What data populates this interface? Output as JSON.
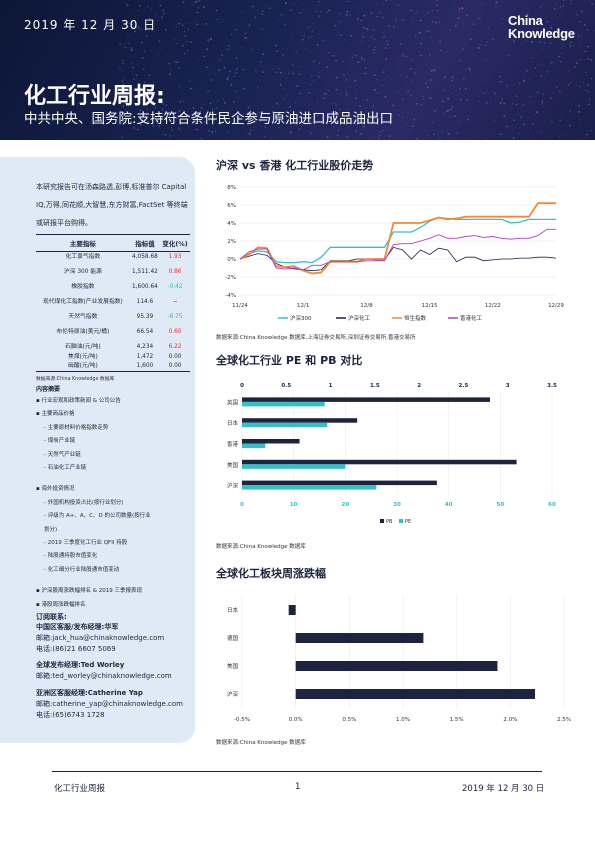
{
  "header": {
    "date": "2019 年 12 月 30 日",
    "logo_line1": "China",
    "logo_line2": "Knowledge",
    "title": "化工行业周报:",
    "subtitle": "中共中央、国务院:支持符合条件民企参与原油进口成品油出口"
  },
  "left": {
    "intro": "本研究报告可在汤森路透,彭博,标准普尔 Capital IQ,万得,同花顺,大智慧,东方财富,FactSet 等终端或研报平台购得。",
    "table": {
      "headers": [
        "主要指标",
        "指标值",
        "变化(%)"
      ],
      "rows": [
        {
          "name": "化工景气指数",
          "value": "4,058.68",
          "change": "1.93",
          "dir": "pos"
        },
        {
          "name": "沪深 300 能源",
          "value": "1,511.42",
          "change": "0.86",
          "dir": "pos"
        },
        {
          "name": "橡胶指数",
          "value": "1,600.64",
          "change": "-0.42",
          "dir": "neg"
        },
        {
          "name": "现代煤化工指数(产业发展指数)",
          "value": "114.6",
          "change": "--",
          "dir": "none"
        },
        {
          "name": "天然气指数",
          "value": "95.39",
          "change": "-6.75",
          "dir": "neg"
        },
        {
          "name": "布伦特原油(美元/桶)",
          "value": "66.54",
          "change": "0.60",
          "dir": "pos"
        },
        {
          "name": "石脑油(元/吨)",
          "value": "4,234",
          "change": "6.22",
          "dir": "pos"
        },
        {
          "name": "焦煤(元/吨)",
          "value": "1,472",
          "change": "0.00",
          "dir": "none"
        },
        {
          "name": "硝酸(元/吨)",
          "value": "1,600",
          "change": "0.00",
          "dir": "none"
        }
      ]
    },
    "table_source": "数据来源:China Knowledge 数据库",
    "toc_title": "内容摘要",
    "toc": [
      {
        "text": "行业宏观和政策新闻 & 公司公告",
        "level": 1
      },
      {
        "text": "主要商品价格",
        "level": 1
      },
      {
        "text": "主要原材料价格指数走势",
        "level": 2
      },
      {
        "text": "煤炭产业链",
        "level": 2
      },
      {
        "text": "天然气产业链",
        "level": 2
      },
      {
        "text": "石油化工产业链",
        "level": 2
      },
      {
        "text": "海外投资情况",
        "level": 1
      },
      {
        "text": "外国机构投资占比(按行业划分)",
        "level": 2
      },
      {
        "text": "评级为 A+、A、C、D 的公司数量(按行业",
        "level": 2
      },
      {
        "text": "划分)",
        "level": 3
      },
      {
        "text": "2019 三季度化工行业 QFII 持股",
        "level": 2
      },
      {
        "text": "陆股通持股市值变化",
        "level": 2
      },
      {
        "text": "化工细分行业陆股通市值变动",
        "level": 2
      },
      {
        "text": "沪深股周涨跌幅排名 & 2019 三季报表现",
        "level": 1
      },
      {
        "text": "港股周涨跌幅排名",
        "level": 1
      }
    ],
    "contact_title": "订阅联系:",
    "contacts": [
      {
        "role": "中国区客服/发布经理:华军",
        "email": "邮箱:jack_hua@chinaknowledge.com",
        "phone": "电话:(86)21 6607 5069"
      },
      {
        "role": "全球发布经理:Ted Worley",
        "email": "邮箱:ted_worley@chinaknowledge.com",
        "phone": ""
      },
      {
        "role": "亚洲区客服经理:Catherine Yap",
        "email": "邮箱:catherine_yap@chinaknowledge.com",
        "phone": "电话:(65)6743 1728"
      }
    ]
  },
  "section1": {
    "title": "沪深 vs 香港 化工行业股价走势",
    "source": "数据来源:China Knowledge 数据库,上海证券交易所,深圳证券交易所,香港交易所"
  },
  "section2": {
    "title": "全球化工行业 PE 和 PB 对比",
    "source": "数据来源:China Knowledge 数据库"
  },
  "section3": {
    "title": "全球化工板块周涨跌幅",
    "source": "数据来源:China Knowledge 数据库"
  },
  "footer": {
    "left": "化工行业周报",
    "page": "1",
    "right": "2019 年 12 月 30 日"
  },
  "colors": {
    "navy": "#1d2440",
    "teal": "#35c0c8",
    "orange": "#f08a3a",
    "purple": "#b23cc8",
    "panel": "#dfeaf6"
  },
  "chart_data": [
    {
      "type": "line",
      "title": "沪深 vs 香港 化工行业股价走势",
      "x_ticks": [
        "11/24",
        "12/1",
        "12/8",
        "12/15",
        "12/22",
        "12/29"
      ],
      "x": [
        0,
        1,
        2,
        3,
        4,
        5,
        6,
        7,
        8,
        9,
        10,
        11,
        12,
        13,
        14,
        15,
        16,
        17,
        18,
        19,
        20,
        21,
        22,
        23,
        24,
        25,
        26,
        27,
        28,
        29,
        30,
        31,
        32,
        33,
        34,
        35
      ],
      "ylim": [
        -4,
        8
      ],
      "y_ticks": [
        "-4%",
        "-2%",
        "0%",
        "2%",
        "4%",
        "6%",
        "8%"
      ],
      "series": [
        {
          "name": "沪深300",
          "color": "#35c0c8",
          "values": [
            0,
            0.6,
            0.9,
            0.8,
            -0.3,
            -0.4,
            -0.4,
            -0.3,
            -0.4,
            0.2,
            1.3,
            1.3,
            1.3,
            1.3,
            1.3,
            1.3,
            1.3,
            3,
            3,
            3,
            3.5,
            4.2,
            4.6,
            4.5,
            4.4,
            4.4,
            4.4,
            4.4,
            4.4,
            4.4,
            4,
            4.1,
            4.4,
            4.4,
            4.4,
            4.4
          ]
        },
        {
          "name": "沪深化工",
          "color": "#1d2440",
          "values": [
            0,
            0.3,
            0.6,
            0.4,
            -0.5,
            -0.9,
            -1.1,
            -1.2,
            -1.3,
            -1.2,
            -0.2,
            -0.2,
            -0.2,
            0,
            0,
            -0.1,
            -0.1,
            1.3,
            1,
            0,
            1,
            0.5,
            1.2,
            1,
            -0.3,
            0.2,
            0.2,
            -0.2,
            -0.1,
            0,
            0,
            0.1,
            0.1,
            0.2,
            0.2,
            0.1
          ]
        },
        {
          "name": "恒生指数",
          "color": "#f08a3a",
          "values": [
            0,
            0.5,
            1.3,
            1.2,
            -0.8,
            -0.9,
            -0.8,
            -1.3,
            -1.6,
            -1.5,
            -0.3,
            -0.3,
            -0.3,
            -0.3,
            0,
            0,
            0,
            4,
            4,
            4,
            4,
            4.3,
            4.6,
            4.4,
            4.5,
            4.7,
            4.7,
            4.7,
            4.7,
            4.7,
            4.7,
            4.7,
            4.7,
            6.2,
            6.2,
            6.2
          ]
        },
        {
          "name": "香港化工",
          "color": "#b23cc8",
          "values": [
            0,
            0.8,
            1.1,
            1.1,
            -1,
            -1.1,
            -1,
            -1.2,
            -0.7,
            -0.7,
            -0.3,
            -0.3,
            -0.3,
            -0.3,
            -0.2,
            -0.2,
            -0.2,
            1.6,
            1.7,
            1.7,
            2,
            2.3,
            2.7,
            2.3,
            2.3,
            2.5,
            2.6,
            2.4,
            2.5,
            2.3,
            2.2,
            2.3,
            2.3,
            2.6,
            3.3,
            3.3
          ]
        }
      ]
    },
    {
      "type": "bar",
      "orientation": "horizontal",
      "title": "全球化工行业 PE 和 PB 对比",
      "categories": [
        "英国",
        "日本",
        "香港",
        "美国",
        "沪深"
      ],
      "series": [
        {
          "name": "PB",
          "axis": "top",
          "xlim": [
            0,
            3.5
          ],
          "color": "#1d2440",
          "values": [
            2.8,
            1.3,
            0.65,
            3.1,
            2.2
          ]
        },
        {
          "name": "PE",
          "axis": "bottom",
          "xlim": [
            0,
            60
          ],
          "color": "#35c0c8",
          "values": [
            16,
            16.5,
            4.5,
            20,
            26
          ]
        }
      ],
      "top_ticks": [
        "0",
        "0.5",
        "1",
        "1.5",
        "2",
        "2.5",
        "3",
        "3.5"
      ],
      "bottom_ticks": [
        "0",
        "10",
        "20",
        "30",
        "40",
        "50",
        "60"
      ]
    },
    {
      "type": "bar",
      "orientation": "horizontal",
      "title": "全球化工板块周涨跌幅",
      "categories": [
        "日本",
        "德国",
        "美国",
        "沪深"
      ],
      "values": [
        -0.065,
        1.19,
        1.88,
        2.23
      ],
      "xlim": [
        -0.5,
        2.5
      ],
      "x_ticks": [
        "-0.5%",
        "0.0%",
        "0.5%",
        "1.0%",
        "1.5%",
        "2.0%",
        "2.5%"
      ],
      "color": "#1d2440"
    }
  ]
}
